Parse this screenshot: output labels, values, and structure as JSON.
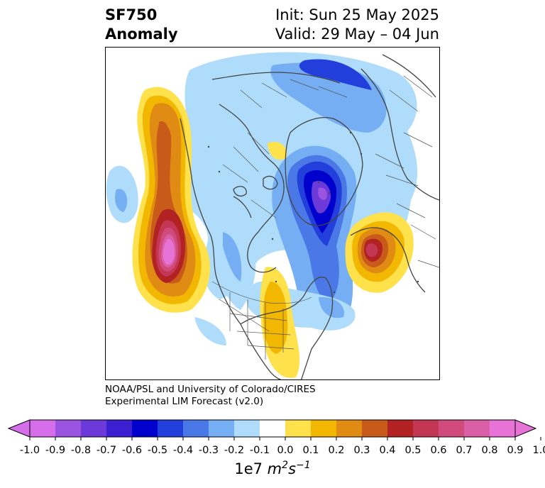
{
  "title": {
    "left_line1": "SF750",
    "left_line2": "Anomaly",
    "right_line1": "Init: Sun 25 May 2025",
    "right_line2": "Valid: 29 May – 04 Jun"
  },
  "credit": {
    "line1": "NOAA/PSL and University of Colorado/CIRES",
    "line2": "Experimental LIM Forecast (v2.0)"
  },
  "colorbar": {
    "ticks": [
      "-1.0",
      "-0.9",
      "-0.8",
      "-0.7",
      "-0.6",
      "-0.5",
      "-0.4",
      "-0.3",
      "-0.2",
      "-0.1",
      "0.0",
      "0.1",
      "0.2",
      "0.3",
      "0.4",
      "0.5",
      "0.6",
      "0.7",
      "0.8",
      "0.9",
      "1.0"
    ],
    "colors": [
      "#d66de9",
      "#9b53e1",
      "#6b3ad9",
      "#3c1fd0",
      "#0000cd",
      "#233fdb",
      "#4a78e7",
      "#75aef2",
      "#aedcfa",
      "#ffffff",
      "#ffe14c",
      "#f2b700",
      "#e08c14",
      "#c85a1a",
      "#b22222",
      "#c33654",
      "#d04b7b",
      "#da5fa7",
      "#e873d6"
    ],
    "under_color": "#d66de9",
    "over_color": "#e873d6",
    "label_base": "1e7 ",
    "label_unit_m": "m",
    "label_unit_m_exp": "2",
    "label_unit_s": "s",
    "label_unit_s_exp": "−1"
  },
  "map": {
    "colors": {
      "coast": "#444444",
      "border": "#555555",
      "neg_light": "#aedcfa",
      "neg_med": "#75aef2",
      "neg_dark": "#4a78e7",
      "neg_deep": "#233fdb",
      "neg_core": "#0000cd",
      "neg_purple": "#6b3ad9",
      "neg_violet": "#9b53e1",
      "pos_pale": "#ffe14c",
      "pos_gold": "#f2b700",
      "pos_orange": "#e08c14",
      "pos_rust": "#c85a1a",
      "pos_red": "#b22222",
      "pos_crimson": "#c33654",
      "pos_rose": "#d04b7b",
      "pos_pink": "#da5fa7",
      "pos_magenta": "#e873d6"
    }
  }
}
